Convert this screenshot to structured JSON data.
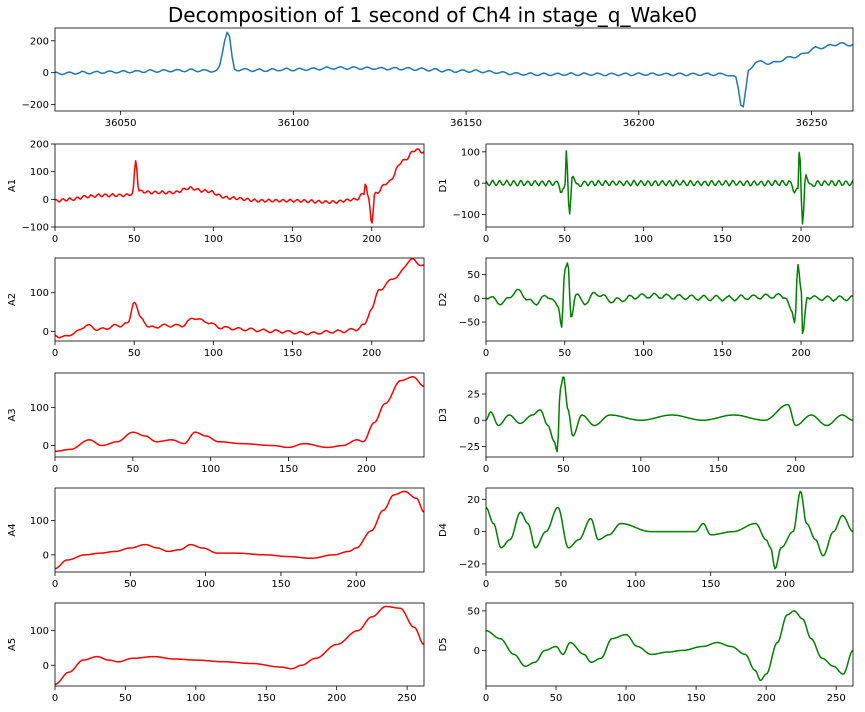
{
  "figure": {
    "title": "Decomposition of 1 second of Ch4 in stage_q_Wake0"
  },
  "colors": {
    "signal": "#1f77b4",
    "approx": "#ff0000",
    "detail": "#008000",
    "axis": "#000000"
  },
  "chart_data": [
    {
      "id": "signal",
      "type": "line",
      "ylabel": "",
      "xlim": [
        36031,
        36262
      ],
      "ylim": [
        -240,
        280
      ],
      "xticks": [
        36050,
        36100,
        36150,
        36200,
        36250
      ],
      "yticks": [
        -200,
        0,
        200
      ],
      "keypoints": [
        [
          36031,
          -5
        ],
        [
          36040,
          0
        ],
        [
          36050,
          5
        ],
        [
          36060,
          10
        ],
        [
          36070,
          15
        ],
        [
          36078,
          10
        ],
        [
          36081,
          260
        ],
        [
          36083,
          20
        ],
        [
          36090,
          15
        ],
        [
          36100,
          20
        ],
        [
          36115,
          30
        ],
        [
          36130,
          25
        ],
        [
          36150,
          10
        ],
        [
          36170,
          -10
        ],
        [
          36190,
          -10
        ],
        [
          36210,
          -10
        ],
        [
          36225,
          -10
        ],
        [
          36228,
          -30
        ],
        [
          36230,
          -220
        ],
        [
          36232,
          20
        ],
        [
          36234,
          70
        ],
        [
          36238,
          60
        ],
        [
          36245,
          100
        ],
        [
          36252,
          155
        ],
        [
          36258,
          180
        ],
        [
          36262,
          175
        ]
      ]
    },
    {
      "id": "A1",
      "type": "line",
      "ylabel": "A1",
      "xlim": [
        0,
        233
      ],
      "ylim": [
        -100,
        200
      ],
      "xticks": [
        0,
        50,
        100,
        150,
        200
      ],
      "yticks": [
        -100,
        0,
        100,
        200
      ],
      "keypoints": [
        [
          0,
          -5
        ],
        [
          10,
          0
        ],
        [
          20,
          10
        ],
        [
          30,
          15
        ],
        [
          45,
          15
        ],
        [
          49,
          20
        ],
        [
          51,
          140
        ],
        [
          53,
          30
        ],
        [
          60,
          25
        ],
        [
          75,
          25
        ],
        [
          85,
          40
        ],
        [
          95,
          30
        ],
        [
          110,
          5
        ],
        [
          130,
          -5
        ],
        [
          150,
          -5
        ],
        [
          175,
          -10
        ],
        [
          190,
          0
        ],
        [
          195,
          20
        ],
        [
          196,
          60
        ],
        [
          198,
          0
        ],
        [
          200,
          -85
        ],
        [
          202,
          20
        ],
        [
          210,
          60
        ],
        [
          220,
          140
        ],
        [
          228,
          180
        ],
        [
          233,
          170
        ]
      ]
    },
    {
      "id": "D1",
      "type": "line",
      "ylabel": "D1",
      "xlim": [
        0,
        233
      ],
      "ylim": [
        -140,
        125
      ],
      "xticks": [
        0,
        50,
        100,
        150,
        200
      ],
      "yticks": [
        -100,
        0,
        100
      ],
      "keypoints": [
        [
          0,
          0
        ],
        [
          46,
          0
        ],
        [
          48,
          -30
        ],
        [
          50,
          -20
        ],
        [
          51,
          110
        ],
        [
          53,
          -105
        ],
        [
          55,
          30
        ],
        [
          58,
          -10
        ],
        [
          62,
          0
        ],
        [
          194,
          0
        ],
        [
          196,
          -30
        ],
        [
          198,
          -20
        ],
        [
          199,
          120
        ],
        [
          201,
          -135
        ],
        [
          203,
          30
        ],
        [
          206,
          -10
        ],
        [
          210,
          0
        ],
        [
          233,
          0
        ]
      ]
    },
    {
      "id": "A2",
      "type": "line",
      "ylabel": "A2",
      "xlim": [
        0,
        233
      ],
      "ylim": [
        -25,
        190
      ],
      "xticks": [
        0,
        50,
        100,
        150,
        200
      ],
      "yticks": [
        0,
        100
      ],
      "keypoints": [
        [
          0,
          -10
        ],
        [
          5,
          -15
        ],
        [
          12,
          -5
        ],
        [
          20,
          15
        ],
        [
          28,
          5
        ],
        [
          40,
          15
        ],
        [
          46,
          20
        ],
        [
          50,
          78
        ],
        [
          54,
          35
        ],
        [
          60,
          10
        ],
        [
          70,
          15
        ],
        [
          80,
          15
        ],
        [
          88,
          35
        ],
        [
          95,
          25
        ],
        [
          105,
          10
        ],
        [
          120,
          5
        ],
        [
          140,
          0
        ],
        [
          160,
          -5
        ],
        [
          180,
          0
        ],
        [
          190,
          5
        ],
        [
          195,
          15
        ],
        [
          200,
          60
        ],
        [
          205,
          110
        ],
        [
          215,
          140
        ],
        [
          225,
          185
        ],
        [
          233,
          170
        ]
      ]
    },
    {
      "id": "D2",
      "type": "line",
      "ylabel": "D2",
      "xlim": [
        0,
        233
      ],
      "ylim": [
        -90,
        85
      ],
      "xticks": [
        0,
        50,
        100,
        150,
        200
      ],
      "yticks": [
        -50,
        0,
        50
      ],
      "keypoints": [
        [
          0,
          5
        ],
        [
          10,
          -10
        ],
        [
          20,
          15
        ],
        [
          30,
          -10
        ],
        [
          40,
          5
        ],
        [
          46,
          -20
        ],
        [
          48,
          -55
        ],
        [
          50,
          60
        ],
        [
          52,
          70
        ],
        [
          54,
          -40
        ],
        [
          57,
          10
        ],
        [
          62,
          -10
        ],
        [
          70,
          10
        ],
        [
          80,
          -5
        ],
        [
          100,
          5
        ],
        [
          150,
          0
        ],
        [
          190,
          5
        ],
        [
          194,
          -30
        ],
        [
          196,
          -50
        ],
        [
          198,
          75
        ],
        [
          200,
          20
        ],
        [
          201,
          -80
        ],
        [
          204,
          5
        ],
        [
          210,
          0
        ],
        [
          233,
          0
        ]
      ]
    },
    {
      "id": "A3",
      "type": "line",
      "ylabel": "A3",
      "xlim": [
        0,
        237
      ],
      "ylim": [
        -30,
        190
      ],
      "xticks": [
        0,
        50,
        100,
        150,
        200
      ],
      "yticks": [
        0,
        100
      ],
      "keypoints": [
        [
          0,
          -15
        ],
        [
          10,
          -10
        ],
        [
          22,
          15
        ],
        [
          30,
          0
        ],
        [
          40,
          10
        ],
        [
          50,
          35
        ],
        [
          58,
          25
        ],
        [
          65,
          10
        ],
        [
          75,
          15
        ],
        [
          83,
          5
        ],
        [
          90,
          35
        ],
        [
          97,
          25
        ],
        [
          105,
          10
        ],
        [
          120,
          5
        ],
        [
          140,
          0
        ],
        [
          150,
          -5
        ],
        [
          160,
          5
        ],
        [
          175,
          -5
        ],
        [
          185,
          0
        ],
        [
          194,
          15
        ],
        [
          198,
          10
        ],
        [
          205,
          60
        ],
        [
          212,
          110
        ],
        [
          222,
          170
        ],
        [
          230,
          180
        ],
        [
          237,
          155
        ]
      ]
    },
    {
      "id": "D3",
      "type": "line",
      "ylabel": "D3",
      "xlim": [
        0,
        237
      ],
      "ylim": [
        -35,
        45
      ],
      "xticks": [
        0,
        50,
        100,
        150,
        200
      ],
      "yticks": [
        -25,
        0,
        25
      ],
      "keypoints": [
        [
          0,
          0
        ],
        [
          3,
          8
        ],
        [
          8,
          -5
        ],
        [
          15,
          5
        ],
        [
          22,
          -3
        ],
        [
          30,
          5
        ],
        [
          35,
          10
        ],
        [
          40,
          -5
        ],
        [
          44,
          -20
        ],
        [
          46,
          -30
        ],
        [
          48,
          30
        ],
        [
          50,
          42
        ],
        [
          53,
          10
        ],
        [
          56,
          -15
        ],
        [
          62,
          5
        ],
        [
          70,
          -5
        ],
        [
          80,
          5
        ],
        [
          100,
          0
        ],
        [
          120,
          5
        ],
        [
          140,
          0
        ],
        [
          160,
          5
        ],
        [
          180,
          0
        ],
        [
          195,
          15
        ],
        [
          200,
          -5
        ],
        [
          210,
          5
        ],
        [
          220,
          -5
        ],
        [
          230,
          5
        ],
        [
          237,
          0
        ]
      ]
    },
    {
      "id": "A4",
      "type": "line",
      "ylabel": "A4",
      "xlim": [
        0,
        245
      ],
      "ylim": [
        -50,
        195
      ],
      "xticks": [
        0,
        50,
        100,
        150,
        200
      ],
      "yticks": [
        0,
        100
      ],
      "keypoints": [
        [
          0,
          -40
        ],
        [
          8,
          -15
        ],
        [
          20,
          0
        ],
        [
          30,
          5
        ],
        [
          40,
          10
        ],
        [
          50,
          20
        ],
        [
          60,
          30
        ],
        [
          68,
          20
        ],
        [
          75,
          10
        ],
        [
          83,
          15
        ],
        [
          90,
          30
        ],
        [
          98,
          20
        ],
        [
          108,
          5
        ],
        [
          120,
          5
        ],
        [
          140,
          0
        ],
        [
          155,
          -5
        ],
        [
          170,
          -10
        ],
        [
          185,
          0
        ],
        [
          195,
          10
        ],
        [
          200,
          20
        ],
        [
          210,
          70
        ],
        [
          218,
          130
        ],
        [
          225,
          175
        ],
        [
          232,
          185
        ],
        [
          240,
          165
        ],
        [
          245,
          125
        ]
      ]
    },
    {
      "id": "D4",
      "type": "line",
      "ylabel": "D4",
      "xlim": [
        0,
        245
      ],
      "ylim": [
        -25,
        27
      ],
      "xticks": [
        0,
        50,
        100,
        150,
        200
      ],
      "yticks": [
        -20,
        0,
        20
      ],
      "keypoints": [
        [
          0,
          15
        ],
        [
          5,
          5
        ],
        [
          10,
          -10
        ],
        [
          16,
          -5
        ],
        [
          23,
          12
        ],
        [
          28,
          5
        ],
        [
          33,
          -10
        ],
        [
          40,
          0
        ],
        [
          48,
          15
        ],
        [
          55,
          -10
        ],
        [
          62,
          -5
        ],
        [
          70,
          8
        ],
        [
          75,
          -5
        ],
        [
          82,
          -2
        ],
        [
          90,
          5
        ],
        [
          110,
          0
        ],
        [
          140,
          0
        ],
        [
          145,
          5
        ],
        [
          150,
          -2
        ],
        [
          165,
          0
        ],
        [
          180,
          5
        ],
        [
          187,
          -5
        ],
        [
          190,
          -10
        ],
        [
          193,
          -23
        ],
        [
          197,
          -10
        ],
        [
          205,
          0
        ],
        [
          210,
          25
        ],
        [
          214,
          5
        ],
        [
          220,
          -5
        ],
        [
          225,
          -15
        ],
        [
          232,
          0
        ],
        [
          238,
          10
        ],
        [
          245,
          0
        ]
      ]
    },
    {
      "id": "A5",
      "type": "line",
      "ylabel": "A5",
      "xlim": [
        0,
        262
      ],
      "ylim": [
        -60,
        180
      ],
      "xticks": [
        0,
        50,
        100,
        150,
        200,
        250
      ],
      "yticks": [
        0,
        100
      ],
      "keypoints": [
        [
          0,
          -55
        ],
        [
          10,
          -20
        ],
        [
          20,
          15
        ],
        [
          30,
          25
        ],
        [
          38,
          15
        ],
        [
          45,
          10
        ],
        [
          55,
          20
        ],
        [
          70,
          25
        ],
        [
          85,
          18
        ],
        [
          100,
          15
        ],
        [
          120,
          10
        ],
        [
          140,
          5
        ],
        [
          160,
          -5
        ],
        [
          168,
          -10
        ],
        [
          175,
          0
        ],
        [
          185,
          20
        ],
        [
          200,
          60
        ],
        [
          215,
          100
        ],
        [
          225,
          140
        ],
        [
          235,
          170
        ],
        [
          245,
          165
        ],
        [
          255,
          110
        ],
        [
          262,
          60
        ]
      ]
    },
    {
      "id": "D5",
      "type": "line",
      "ylabel": "D5",
      "xlim": [
        0,
        262
      ],
      "ylim": [
        -45,
        60
      ],
      "xticks": [
        0,
        50,
        100,
        150,
        200,
        250
      ],
      "yticks": [
        0,
        50
      ],
      "keypoints": [
        [
          0,
          25
        ],
        [
          10,
          15
        ],
        [
          20,
          -5
        ],
        [
          28,
          -20
        ],
        [
          35,
          -15
        ],
        [
          42,
          0
        ],
        [
          50,
          5
        ],
        [
          55,
          -5
        ],
        [
          60,
          10
        ],
        [
          70,
          -5
        ],
        [
          75,
          -15
        ],
        [
          82,
          -10
        ],
        [
          90,
          15
        ],
        [
          100,
          20
        ],
        [
          108,
          5
        ],
        [
          118,
          -5
        ],
        [
          130,
          -2
        ],
        [
          140,
          0
        ],
        [
          155,
          5
        ],
        [
          165,
          10
        ],
        [
          175,
          5
        ],
        [
          185,
          -5
        ],
        [
          192,
          -25
        ],
        [
          196,
          -38
        ],
        [
          200,
          -30
        ],
        [
          208,
          10
        ],
        [
          215,
          45
        ],
        [
          220,
          50
        ],
        [
          226,
          40
        ],
        [
          232,
          15
        ],
        [
          240,
          -10
        ],
        [
          248,
          -20
        ],
        [
          255,
          -30
        ],
        [
          262,
          0
        ]
      ]
    }
  ]
}
